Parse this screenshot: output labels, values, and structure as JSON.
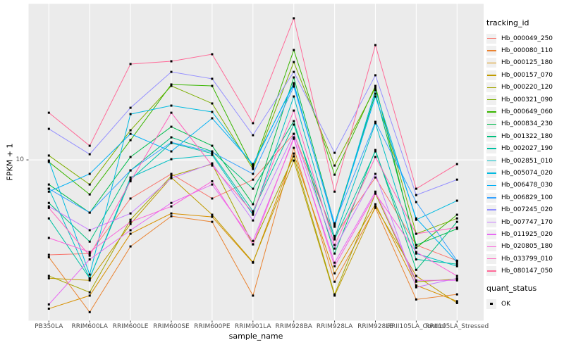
{
  "figure": {
    "panel_bg": "#EBEBEB",
    "grid_color": "#FFFFFF",
    "tick_color": "#333333",
    "tick_label_color": "#4D4D4D",
    "point_color": "#000000"
  },
  "legend": {
    "tracking_title": "tracking_id",
    "quant_title": "quant_status",
    "quant_ok_label": "OK"
  },
  "chart_data": {
    "type": "line",
    "title": "",
    "xlabel": "sample_name",
    "ylabel": "FPKM + 1",
    "grid": true,
    "legend_position": "right",
    "point_marker": "black-square",
    "categories": [
      "PB350LA",
      "RRIM600LA",
      "RRIM600LE",
      "RRIM600SE",
      "RRIM600PE",
      "RRIM901LA",
      "RRIM928BA",
      "RRIM928LA",
      "RRIM928LE",
      "RRII105LA_Control",
      "RRII105LA_Stressed"
    ],
    "y_scale": {
      "type": "log10",
      "domain": [
        1.53,
        61.8
      ],
      "tick_values": [
        10
      ],
      "tick_labels": [
        "10"
      ]
    },
    "series": [
      {
        "name": "Hb_000049_250",
        "color": "#F8766D",
        "values": [
          3.3,
          3.35,
          6.37,
          8.49,
          6.37,
          7.94,
          13.55,
          4.11,
          8.14,
          3.7,
          3.08
        ]
      },
      {
        "name": "Hb_000080_110",
        "color": "#EA8331",
        "values": [
          3.21,
          1.69,
          3.64,
          5.18,
          4.85,
          2.05,
          11.5,
          2.41,
          5.71,
          1.96,
          2.08
        ]
      },
      {
        "name": "Hb_000125_180",
        "color": "#D89000",
        "values": [
          1.76,
          2.05,
          4.22,
          5.35,
          5.14,
          3.01,
          10.77,
          2.66,
          5.96,
          2.31,
          1.92
        ]
      },
      {
        "name": "Hb_000157_070",
        "color": "#C09B00",
        "values": [
          2.51,
          2.45,
          4.73,
          8.14,
          5.27,
          3.03,
          9.92,
          2.05,
          5.81,
          2.58,
          1.88
        ]
      },
      {
        "name": "Hb_000220_120",
        "color": "#A3A500",
        "values": [
          2.58,
          2.13,
          4.97,
          8.28,
          9.52,
          3.73,
          10.42,
          2.08,
          6.74,
          2.41,
          2.49
        ]
      },
      {
        "name": "Hb_000321_090",
        "color": "#7CAE00",
        "values": [
          10.52,
          7.5,
          14.13,
          23.72,
          19.32,
          8.99,
          31.34,
          9.36,
          23.13,
          4.22,
          5.05
        ]
      },
      {
        "name": "Hb_000649_060",
        "color": "#39B600",
        "values": [
          9.76,
          6.68,
          12.59,
          24.12,
          23.72,
          9.14,
          36.06,
          8.41,
          23.72,
          3.58,
          5.27
        ]
      },
      {
        "name": "Hb_000834_230",
        "color": "#00BB4E",
        "values": [
          7.5,
          5.4,
          10.34,
          14.72,
          11.79,
          5.96,
          26.18,
          4.73,
          21.67,
          3.7,
          4.47
        ]
      },
      {
        "name": "Hb_001322_180",
        "color": "#00BF7D",
        "values": [
          6.05,
          3.85,
          8.84,
          13.01,
          11.04,
          7.14,
          15.72,
          3.35,
          11.22,
          2.77,
          4.85
        ]
      },
      {
        "name": "Hb_002027_190",
        "color": "#00C1A3",
        "values": [
          5.05,
          2.51,
          7.94,
          12.18,
          10.77,
          5.49,
          15.1,
          3.95,
          11.04,
          3.13,
          2.96
        ]
      },
      {
        "name": "Hb_002851_010",
        "color": "#00BFC4",
        "values": [
          7.14,
          2.51,
          8.14,
          10.08,
          10.59,
          5.27,
          20.96,
          4.02,
          15.34,
          3.35,
          2.89
        ]
      },
      {
        "name": "Hb_005074_020",
        "color": "#00BAE0",
        "values": [
          9.92,
          2.62,
          17.06,
          18.84,
          17.5,
          9.36,
          24.49,
          4.58,
          22.57,
          4.97,
          6.21
        ]
      },
      {
        "name": "Hb_006478_030",
        "color": "#00B0F6",
        "values": [
          6.9,
          8.49,
          13.55,
          11.04,
          16.25,
          9.52,
          24.12,
          4.66,
          20.96,
          5.05,
          3.03
        ]
      },
      {
        "name": "Hb_006829_100",
        "color": "#35A2FF",
        "values": [
          7.14,
          5.4,
          8.84,
          12.28,
          10.95,
          8.49,
          23.52,
          4.77,
          15.59,
          6.11,
          3.08
        ]
      },
      {
        "name": "Hb_007245_020",
        "color": "#9590FF",
        "values": [
          14.36,
          10.68,
          18.37,
          27.93,
          25.77,
          13.34,
          27.93,
          10.86,
          26.85,
          6.63,
          7.94
        ]
      },
      {
        "name": "Hb_007747_170",
        "color": "#C77CFF",
        "values": [
          5.81,
          4.4,
          5.35,
          8.07,
          9.6,
          4.93,
          13.55,
          3.55,
          8.49,
          2.26,
          2.51
        ]
      },
      {
        "name": "Hb_011925_020",
        "color": "#E76BF3",
        "values": [
          1.85,
          3.13,
          4.4,
          6.05,
          7.5,
          3.88,
          12.79,
          3.01,
          6.9,
          2.45,
          2.45
        ]
      },
      {
        "name": "Hb_020805_180",
        "color": "#FA62DB",
        "values": [
          4.02,
          3.41,
          4.85,
          5.81,
          7.79,
          3.73,
          13.01,
          2.89,
          6.74,
          3.41,
          2.58
        ]
      },
      {
        "name": "Hb_033799_010",
        "color": "#FF62BC",
        "values": [
          5.71,
          3.27,
          7.79,
          17.34,
          9.36,
          5.4,
          17.78,
          3.7,
          10.34,
          4.22,
          4.54
        ]
      },
      {
        "name": "Hb_080147_050",
        "color": "#FF6A98",
        "values": [
          17.34,
          11.79,
          30.62,
          31.62,
          34.33,
          15.35,
          52.24,
          6.9,
          38.19,
          7.14,
          9.52
        ]
      }
    ]
  }
}
